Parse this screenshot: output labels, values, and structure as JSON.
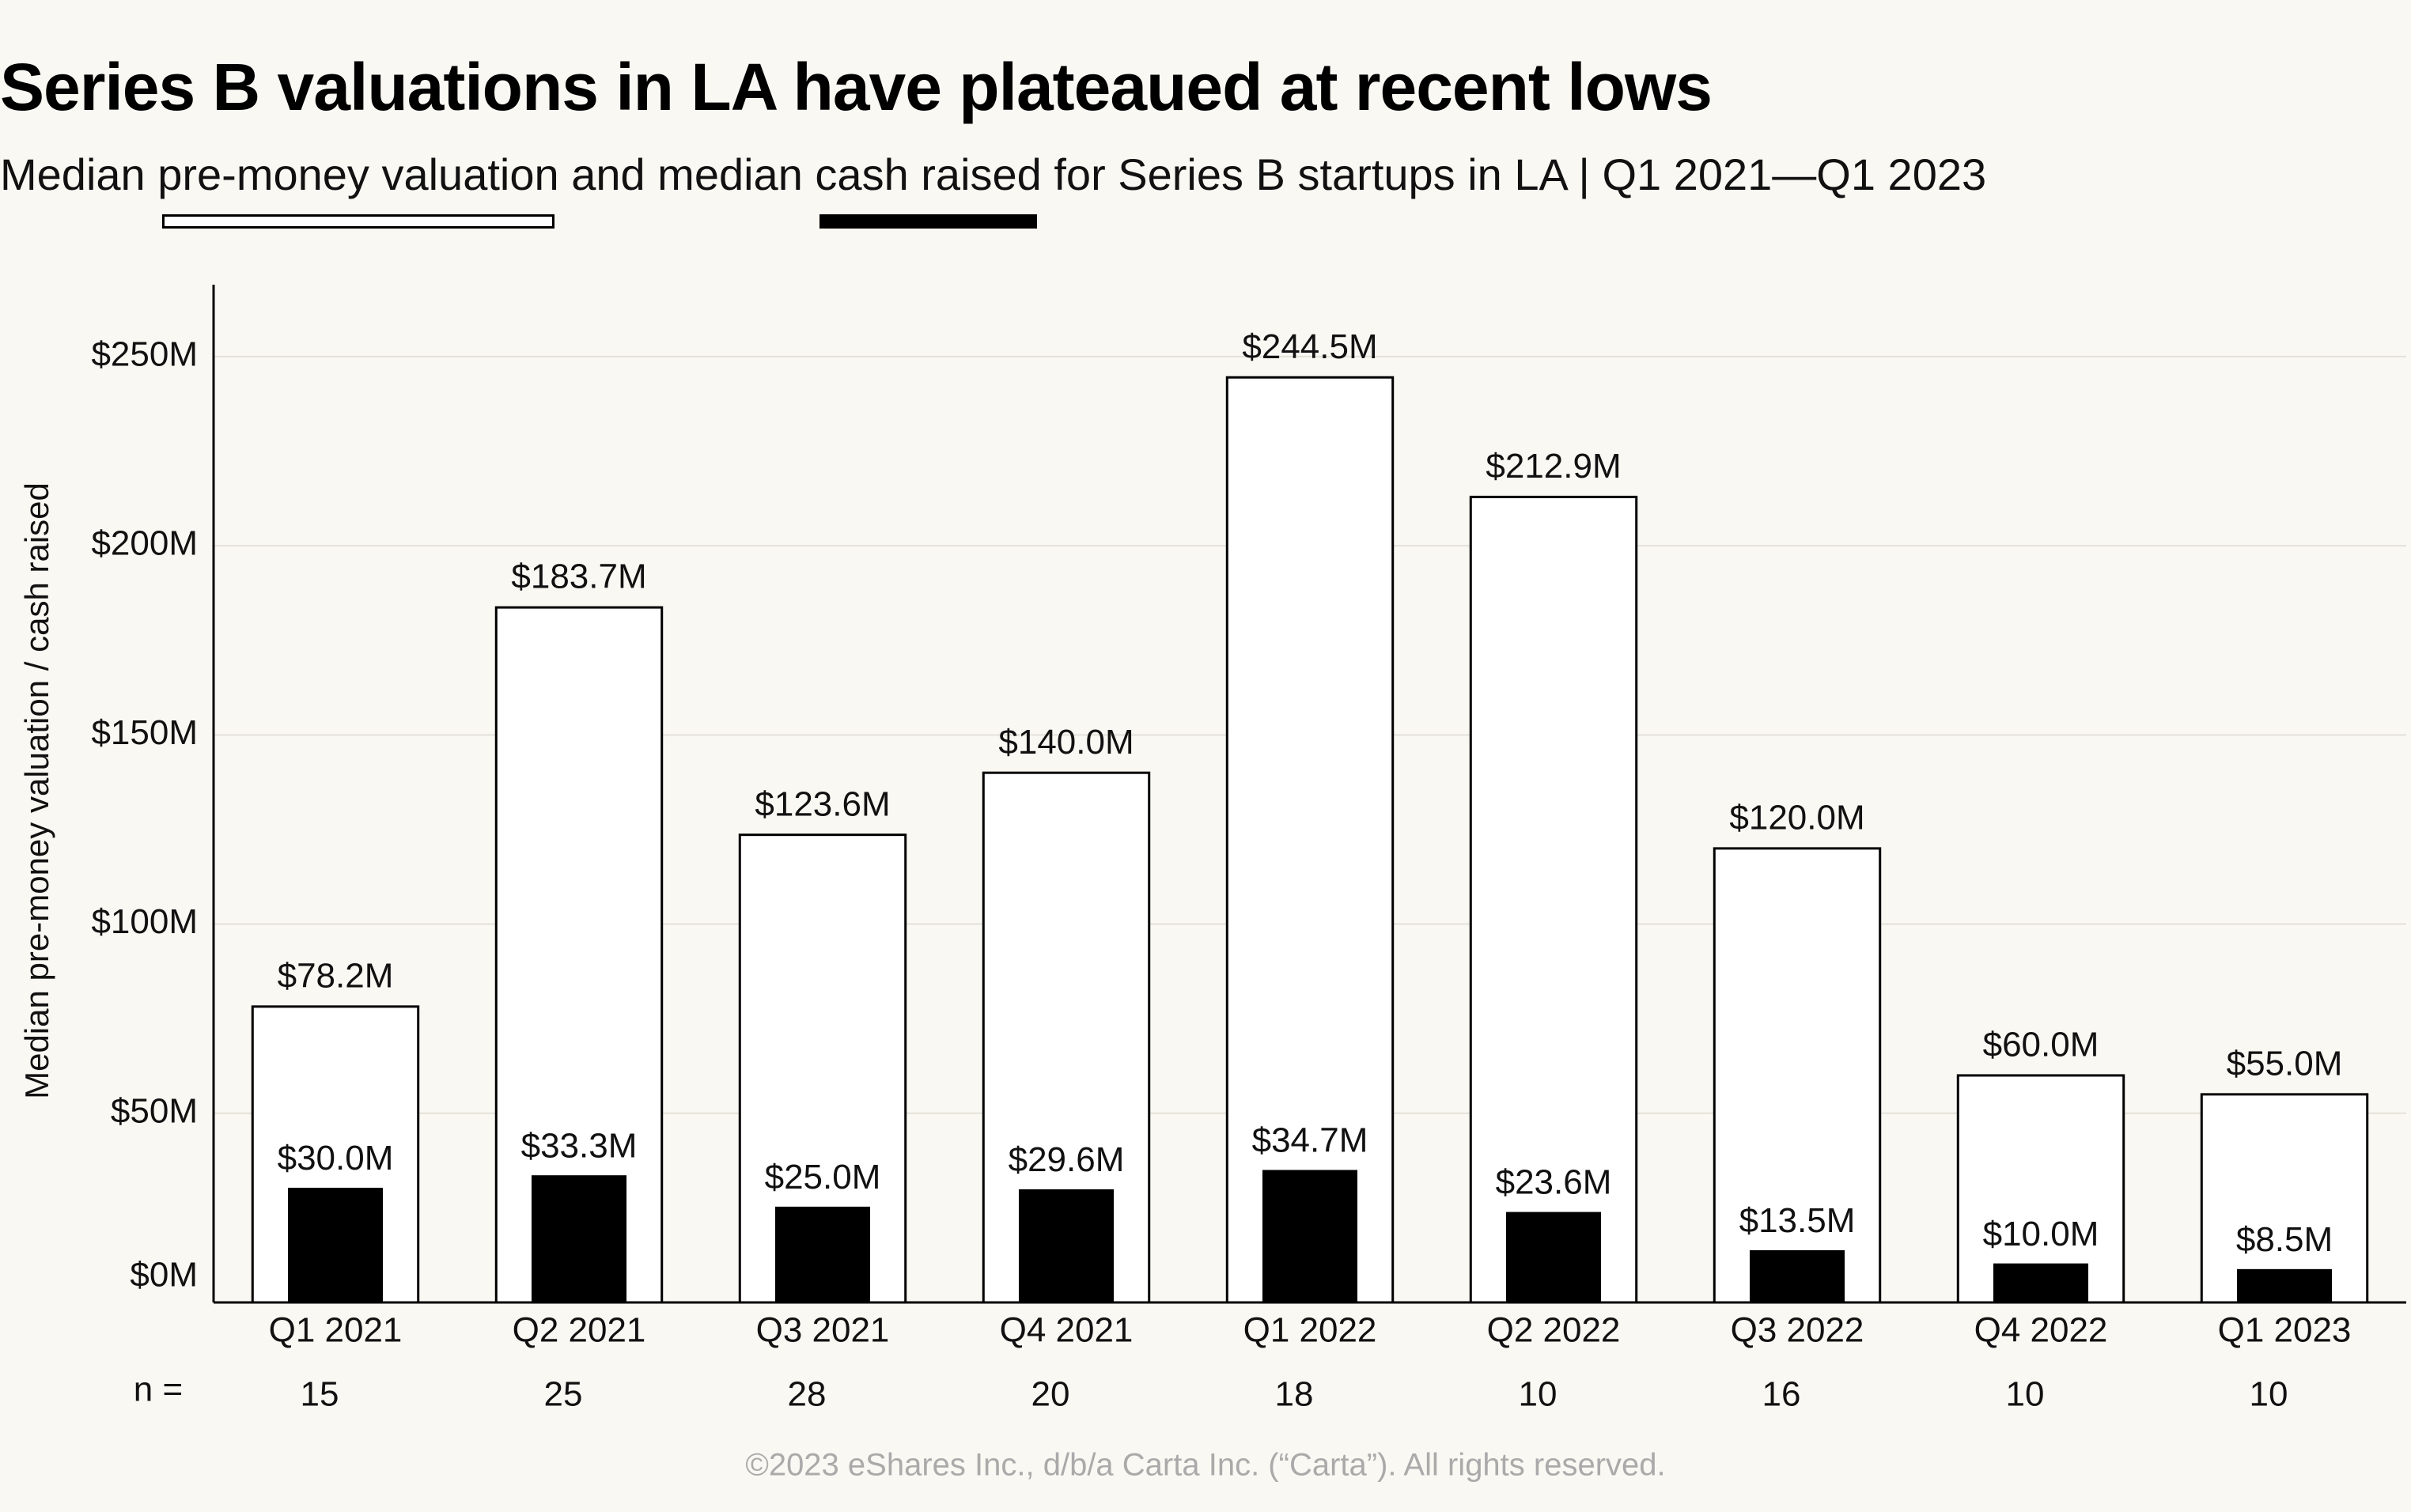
{
  "chart_data": {
    "type": "bar",
    "title": "Series B valuations in LA have plateaued at recent lows",
    "subtitle": [
      "Median",
      "and median",
      "for Series B startups in LA |  Q1 2021—Q1 2023"
    ],
    "y_label": "Median pre-money valuation / cash raised",
    "categories": [
      "Q1 2021",
      "Q2 2021",
      "Q3 2021",
      "Q4 2021",
      "Q1 2022",
      "Q2 2022",
      "Q3 2022",
      "Q4 2022",
      "Q1 2023"
    ],
    "series": [
      {
        "name": "pre-money valuation",
        "color": "#ffffff",
        "values": [
          78.2,
          183.7,
          123.6,
          140.0,
          244.5,
          212.9,
          120.0,
          60.0,
          55.0
        ],
        "value_labels": [
          "$78.2M",
          "$183.7M",
          "$123.6M",
          "$140.0M",
          "$244.5M",
          "$212.9M",
          "$120.0M",
          "$60.0M",
          "$55.0M"
        ]
      },
      {
        "name": "cash raised",
        "color": "#000000",
        "values": [
          30.0,
          33.3,
          25.0,
          29.6,
          34.7,
          23.6,
          13.5,
          10.0,
          8.5
        ],
        "value_labels": [
          "$30.0M",
          "$33.3M",
          "$25.0M",
          "$29.6M",
          "$34.7M",
          "$23.6M",
          "$13.5M",
          "$10.0M",
          "$8.5M"
        ]
      }
    ],
    "ylim": [
      0,
      269
    ],
    "yticks": [
      {
        "value": 0,
        "label": "$0M"
      },
      {
        "value": 50,
        "label": "$50M"
      },
      {
        "value": 100,
        "label": "$100M"
      },
      {
        "value": 150,
        "label": "$150M"
      },
      {
        "value": 200,
        "label": "$200M"
      },
      {
        "value": 250,
        "label": "$250M"
      }
    ],
    "grid": true,
    "n_label": "n =",
    "n": [
      15,
      25,
      28,
      20,
      18,
      10,
      16,
      10,
      10
    ],
    "footer": "©2023 eShares Inc., d/b/a Carta Inc. (“Carta”). All rights reserved."
  }
}
